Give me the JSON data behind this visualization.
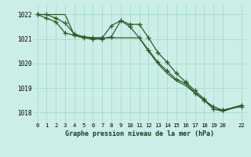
{
  "background_color": "#cceee8",
  "grid_color": "#aaddcc",
  "line_color": "#2d5a27",
  "title": "Graphe pression niveau de la mer (hPa)",
  "xlim": [
    -0.5,
    22.5
  ],
  "ylim": [
    1017.6,
    1022.4
  ],
  "yticks": [
    1018,
    1019,
    1020,
    1021,
    1022
  ],
  "xticks": [
    0,
    1,
    2,
    3,
    4,
    5,
    6,
    7,
    8,
    9,
    10,
    11,
    12,
    13,
    14,
    15,
    16,
    17,
    18,
    19,
    20,
    22
  ],
  "xtick_labels": [
    "0",
    "1",
    "2",
    "3",
    "4",
    "5",
    "6",
    "7",
    "8",
    "9",
    "10",
    "11",
    "12",
    "13",
    "14",
    "15",
    "16",
    "17",
    "18",
    "19",
    "20",
    "22"
  ],
  "series1_x": [
    0,
    1,
    2,
    3,
    4,
    5,
    6,
    7,
    8,
    9,
    10,
    11,
    12,
    13,
    14,
    15,
    16,
    17,
    18,
    19,
    20,
    22
  ],
  "series1_y": [
    1022.0,
    1022.0,
    1021.85,
    1021.65,
    1021.2,
    1021.1,
    1021.05,
    1021.05,
    1021.55,
    1021.75,
    1021.6,
    1021.6,
    1021.05,
    1020.45,
    1020.05,
    1019.6,
    1019.25,
    1018.9,
    1018.55,
    1018.15,
    1018.1,
    1018.3
  ],
  "series2_x": [
    0,
    1,
    2,
    3,
    4,
    5,
    6,
    7,
    8,
    9,
    10,
    11,
    12,
    13,
    14,
    15,
    16,
    17,
    18,
    19,
    20,
    22
  ],
  "series2_y": [
    1022.0,
    1021.85,
    1021.7,
    1021.25,
    1021.15,
    1021.05,
    1021.0,
    1021.0,
    1021.1,
    1021.75,
    1021.5,
    1021.05,
    1020.55,
    1020.05,
    1019.7,
    1019.35,
    1019.2,
    1018.8,
    1018.5,
    1018.25,
    1018.1,
    1018.25
  ],
  "series3_x": [
    0,
    1,
    2,
    3,
    4,
    5,
    6,
    7,
    8,
    9,
    10,
    11,
    12,
    13,
    14,
    15,
    16,
    17,
    18,
    19,
    20,
    22
  ],
  "series3_y": [
    1022.0,
    1022.0,
    1022.0,
    1022.0,
    1021.15,
    1021.05,
    1021.05,
    1021.05,
    1021.05,
    1021.05,
    1021.05,
    1021.05,
    1020.5,
    1020.0,
    1019.6,
    1019.3,
    1019.1,
    1018.8,
    1018.5,
    1018.15,
    1018.05,
    1018.3
  ],
  "marker": "+",
  "markersize": 4,
  "linewidth": 0.9
}
